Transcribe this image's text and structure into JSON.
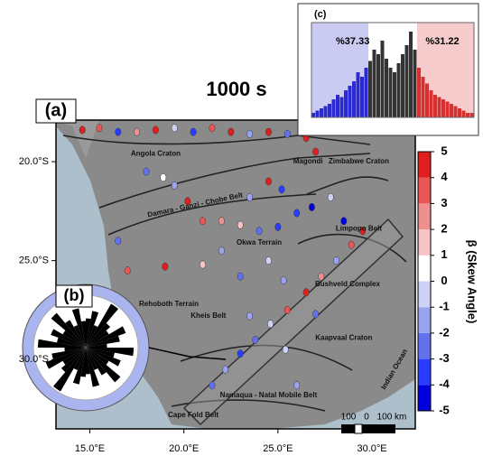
{
  "title": "1000 s",
  "panels": {
    "a": "(a)",
    "b": "(b)",
    "c": "(c)"
  },
  "map": {
    "xlim": [
      13.2,
      32.3
    ],
    "ylim": [
      -17.9,
      -33.5
    ],
    "xticks": [
      {
        "value": 15,
        "label": "15.0°E"
      },
      {
        "value": 20,
        "label": "20.0°E"
      },
      {
        "value": 25,
        "label": "25.0°E"
      },
      {
        "value": 30,
        "label": "30.0°E"
      }
    ],
    "yticks": [
      {
        "value": -20,
        "label": "20.0°S"
      },
      {
        "value": -25,
        "label": "25.0°S"
      },
      {
        "value": -30,
        "label": "30.0°S"
      }
    ],
    "labels": [
      "Angola Craton",
      "Damara - Ganzi - Chobe Belt",
      "Zimbabwe Craton",
      "Magondi",
      "Limpopo Belt",
      "Okwa Terrain",
      "Rehoboth Terrain",
      "Kheis Belt",
      "Bushveld Complex",
      "Kaapvaal Craton",
      "Namaqua - Natal Mobile Belt",
      "Cape Fold Belt",
      "Indian Ocean"
    ],
    "scale_labels": [
      "100",
      "0",
      "100 km"
    ],
    "points": {
      "lon": [
        14.6,
        15.5,
        16.5,
        17.5,
        18.5,
        19.5,
        20.5,
        21.5,
        22.5,
        23.5,
        24.5,
        25.5,
        26.5,
        27,
        18,
        18.9,
        19.5,
        20.2,
        21,
        22,
        23,
        24,
        25,
        26,
        26.8,
        25.2,
        24.5,
        23.5,
        22,
        23,
        21,
        19,
        17,
        16.5,
        24.5,
        25.3,
        27.8,
        28.5,
        21.5,
        22.2,
        23,
        23.8,
        24.6,
        25.5,
        26.5,
        27.3,
        28.1,
        28.9,
        29.5,
        27,
        25.4,
        26,
        23.5
      ],
      "lat": [
        -18.4,
        -18.3,
        -18.5,
        -18.5,
        -18.4,
        -18.3,
        -18.5,
        -18.3,
        -18.5,
        -18.6,
        -18.5,
        -18.6,
        -18.8,
        -19.5,
        -20.5,
        -20.8,
        -21.2,
        -22,
        -23,
        -23,
        -23.2,
        -23.5,
        -23.3,
        -22.6,
        -22.3,
        -21.4,
        -21,
        -21.8,
        -24.5,
        -25.8,
        -25.2,
        -25.3,
        -25.5,
        -24,
        -25,
        -26,
        -21.8,
        -23,
        -31.3,
        -30.5,
        -29.7,
        -29,
        -28.2,
        -27.5,
        -26.6,
        -25.8,
        -25,
        -24.2,
        -23.5,
        -27.7,
        -29.5,
        -31.3,
        -27.8
      ],
      "beta": [
        4,
        3,
        -4,
        2,
        4,
        -1,
        -4,
        3,
        5,
        -2,
        4,
        -3,
        4,
        5,
        -3,
        0,
        -2,
        4,
        3,
        2,
        1,
        -3,
        -4,
        -4,
        -5,
        -4,
        4,
        -2,
        -2,
        -3,
        1,
        4,
        3,
        -3,
        -1,
        -2,
        -1,
        -5,
        -3,
        -2,
        -4,
        -3,
        -1,
        3,
        4,
        2,
        -2,
        3,
        4,
        -3,
        -1,
        -2,
        -2
      ]
    }
  },
  "colorbar": {
    "label": "β (Skew Angle)",
    "clim": [
      -5,
      5
    ],
    "ticks": [
      5,
      4,
      3,
      2,
      1,
      0,
      -1,
      -2,
      -3,
      -4,
      -5
    ],
    "colors": [
      "#0000dd",
      "#2a3cff",
      "#6272ee",
      "#9aa3ee",
      "#cdd2f6",
      "#ffffff",
      "#f6c4c4",
      "#ef9090",
      "#ea5555",
      "#e01e1e"
    ]
  },
  "histogram": {
    "left_label": "%37.33",
    "right_label": "%31.22",
    "counts": [
      2,
      3,
      4,
      5,
      6,
      8,
      10,
      9,
      12,
      14,
      16,
      20,
      18,
      22,
      25,
      30,
      28,
      34,
      26,
      22,
      20,
      24,
      28,
      32,
      38,
      30,
      22,
      18,
      15,
      12,
      10,
      9,
      8,
      7,
      6,
      5,
      4,
      3,
      2,
      2
    ],
    "colors": [
      "#2a2ad0",
      "#333333",
      "#d83030"
    ],
    "split": [
      14,
      26
    ]
  },
  "rose": {
    "values": [
      0.55,
      0.7,
      0.45,
      0.95,
      0.6,
      0.5,
      0.8,
      0.65,
      0.4,
      0.9,
      0.55,
      0.7,
      0.5,
      0.85,
      0.6,
      0.45,
      0.75,
      0.5,
      0.55,
      0.7,
      0.45,
      0.95,
      0.6,
      0.5,
      0.8,
      0.65,
      0.4,
      0.9,
      0.55,
      0.7,
      0.5,
      0.85,
      0.6,
      0.45,
      0.75,
      0.5
    ]
  }
}
